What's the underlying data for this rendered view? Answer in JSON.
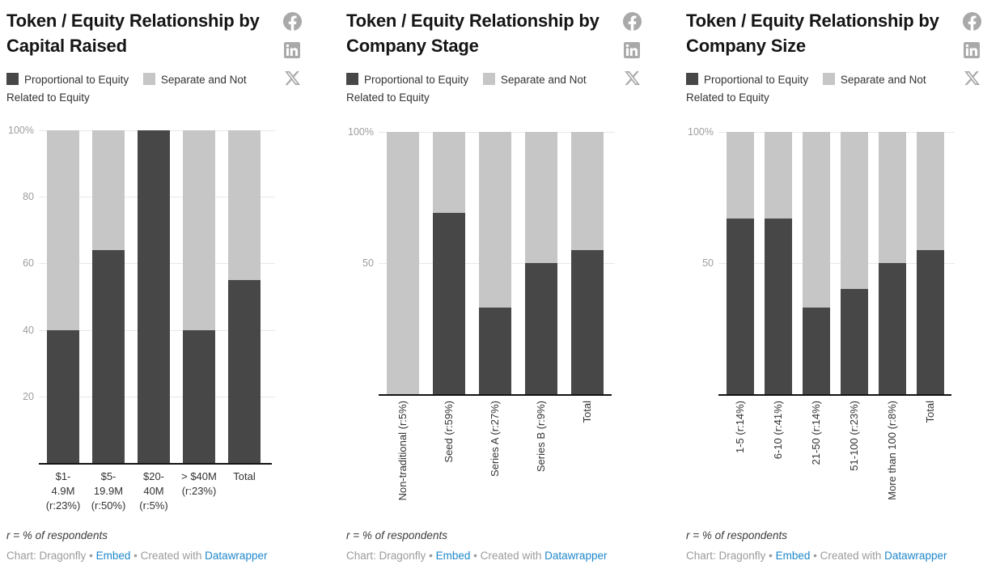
{
  "charts_common": {
    "legend": [
      {
        "label": "Proportional to Equity",
        "color": "#474747"
      },
      {
        "label": "Separate and Not Related to Equity",
        "color": "#c6c6c6"
      }
    ],
    "note": "r = % of respondents",
    "attribution": {
      "source_label": "Chart: Dragonfly",
      "separator": "•",
      "embed_link": "Embed",
      "created_with": "Created with",
      "datawrapper_link": "Datawrapper"
    },
    "social_icons": [
      "facebook-icon",
      "linkedin-icon",
      "x-icon"
    ],
    "colors": {
      "dark_bar": "#474747",
      "light_bar": "#c6c6c6",
      "gridline": "#e8e8e8",
      "axis_tick_text": "#9d9d9d",
      "link_blue": "#1e87cb",
      "icon_gray": "#a9a9a9"
    }
  },
  "chart_data": [
    {
      "type": "bar",
      "stacked": true,
      "title": "Token / Equity Relationship by Capital Raised",
      "categories": [
        "$1-4.9M (r:23%)",
        "$5-19.9M (r:50%)",
        "$20-40M (r:5%)",
        "> $40M (r:23%)",
        "Total"
      ],
      "category_label_lines": [
        [
          "$1-",
          "4.9M",
          "(r:23%)"
        ],
        [
          "$5-",
          "19.9M",
          "(r:50%)"
        ],
        [
          "$20-",
          "40M",
          "(r:5%)"
        ],
        [
          "> $40M",
          "(r:23%)"
        ],
        [
          "Total"
        ]
      ],
      "series": [
        {
          "name": "Proportional to Equity",
          "color": "#474747",
          "values": [
            40,
            64,
            100,
            40,
            55
          ]
        },
        {
          "name": "Separate and Not Related to Equity",
          "color": "#c6c6c6",
          "values": [
            60,
            36,
            0,
            60,
            45
          ]
        }
      ],
      "ylim": [
        0,
        100
      ],
      "yticks": [
        {
          "label": "100%",
          "value": 100
        },
        {
          "label": "80",
          "value": 80
        },
        {
          "label": "60",
          "value": 60
        },
        {
          "label": "40",
          "value": 40
        },
        {
          "label": "20",
          "value": 20
        }
      ],
      "grid": true,
      "legend_position": "top",
      "x_label_style": "horizontal"
    },
    {
      "type": "bar",
      "stacked": true,
      "title": "Token / Equity Relationship by Company Stage",
      "categories": [
        "Non-traditional (r:5%)",
        "Seed (r:59%)",
        "Series A (r:27%)",
        "Series B (r:9%)",
        "Total"
      ],
      "series": [
        {
          "name": "Proportional to Equity",
          "color": "#474747",
          "values": [
            0,
            69,
            33,
            50,
            55
          ]
        },
        {
          "name": "Separate and Not Related to Equity",
          "color": "#c6c6c6",
          "values": [
            100,
            31,
            67,
            50,
            45
          ]
        }
      ],
      "ylim": [
        0,
        100
      ],
      "yticks": [
        {
          "label": "100%",
          "value": 100
        },
        {
          "label": "50",
          "value": 50
        }
      ],
      "grid": true,
      "legend_position": "top",
      "x_label_style": "rotated"
    },
    {
      "type": "bar",
      "stacked": true,
      "title": "Token / Equity Relationship by Company Size",
      "categories": [
        "1-5 (r:14%)",
        "6-10 (r:41%)",
        "21-50 (r:14%)",
        "51-100 (r:23%)",
        "More than 100 (r:8%)",
        "Total"
      ],
      "series": [
        {
          "name": "Proportional to Equity",
          "color": "#474747",
          "values": [
            67,
            67,
            33,
            40,
            50,
            55
          ]
        },
        {
          "name": "Separate and Not Related to Equity",
          "color": "#c6c6c6",
          "values": [
            33,
            33,
            67,
            60,
            50,
            45
          ]
        }
      ],
      "ylim": [
        0,
        100
      ],
      "yticks": [
        {
          "label": "100%",
          "value": 100
        },
        {
          "label": "50",
          "value": 50
        }
      ],
      "grid": true,
      "legend_position": "top",
      "x_label_style": "rotated"
    }
  ]
}
